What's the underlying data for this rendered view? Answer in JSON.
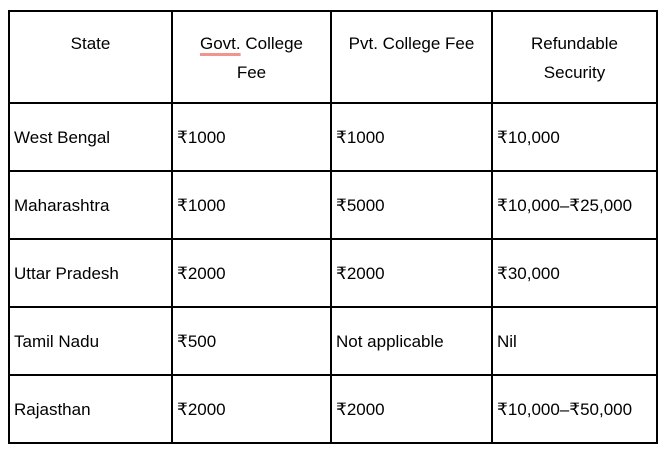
{
  "colors": {
    "border": "#000000",
    "background": "#ffffff",
    "text": "#000000",
    "spellcheck_underline": "#f1948a"
  },
  "table": {
    "header": {
      "col1": "State",
      "col2_misspelled_word": "Govt.",
      "col2_line1_rest": "College",
      "col2_line2": "Fee",
      "col3": "Pvt. College Fee",
      "col4_line1": "Refundable",
      "col4_line2": "Security"
    },
    "columns": [
      "State",
      "Govt. College Fee",
      "Pvt. College Fee",
      "Refundable Security"
    ],
    "rows": [
      {
        "state": "West Bengal",
        "govt_fee": "₹1000",
        "pvt_fee": "₹1000",
        "security": "₹10,000"
      },
      {
        "state": "Maharashtra",
        "govt_fee": "₹1000",
        "pvt_fee": "₹5000",
        "security": "₹10,000–₹25,000"
      },
      {
        "state": "Uttar Pradesh",
        "govt_fee": "₹2000",
        "pvt_fee": "₹2000",
        "security": "₹30,000"
      },
      {
        "state": "Tamil Nadu",
        "govt_fee": "₹500",
        "pvt_fee": "Not applicable",
        "security": "Nil"
      },
      {
        "state": "Rajasthan",
        "govt_fee": "₹2000",
        "pvt_fee": "₹2000",
        "security": "₹10,000–₹50,000"
      }
    ]
  }
}
